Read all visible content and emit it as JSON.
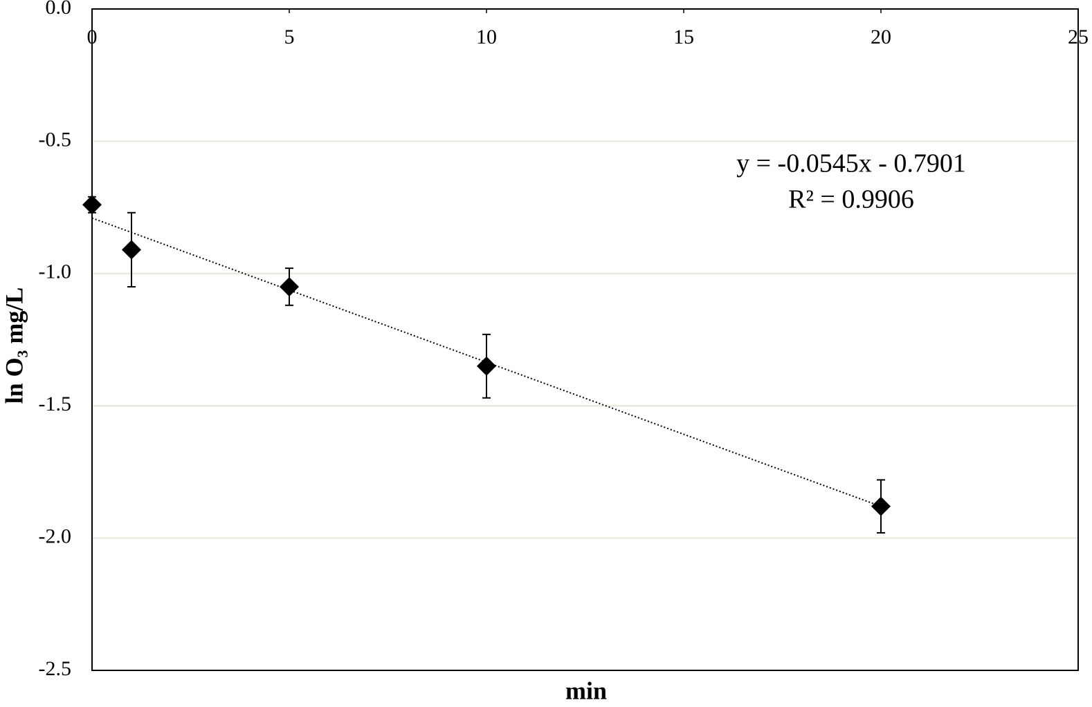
{
  "chart_data": {
    "type": "scatter",
    "xlabel": "min",
    "ylabel": "ln O₃ mg/L",
    "x": [
      0,
      1,
      5,
      10,
      20
    ],
    "values": [
      -0.74,
      -0.91,
      -1.05,
      -1.35,
      -1.88
    ],
    "errors": [
      0.03,
      0.14,
      0.07,
      0.12,
      0.1
    ],
    "color": "#000000",
    "xlim": [
      0,
      25
    ],
    "ylim": [
      -2.5,
      0
    ],
    "xticks": [
      0,
      5,
      10,
      15,
      20,
      25
    ],
    "yticks": [
      {
        "value": 0,
        "label": "0.0"
      },
      -0.5,
      {
        "value": -1,
        "label": "-1.0"
      },
      -1.5,
      {
        "value": -2,
        "label": "-2.0"
      },
      -2.5
    ],
    "grid": true,
    "trendline": {
      "slope": -0.0545,
      "intercept": -0.7901
    },
    "annotations": [
      "y = -0.0545x - 0.7901",
      "R² = 0.9906"
    ]
  }
}
